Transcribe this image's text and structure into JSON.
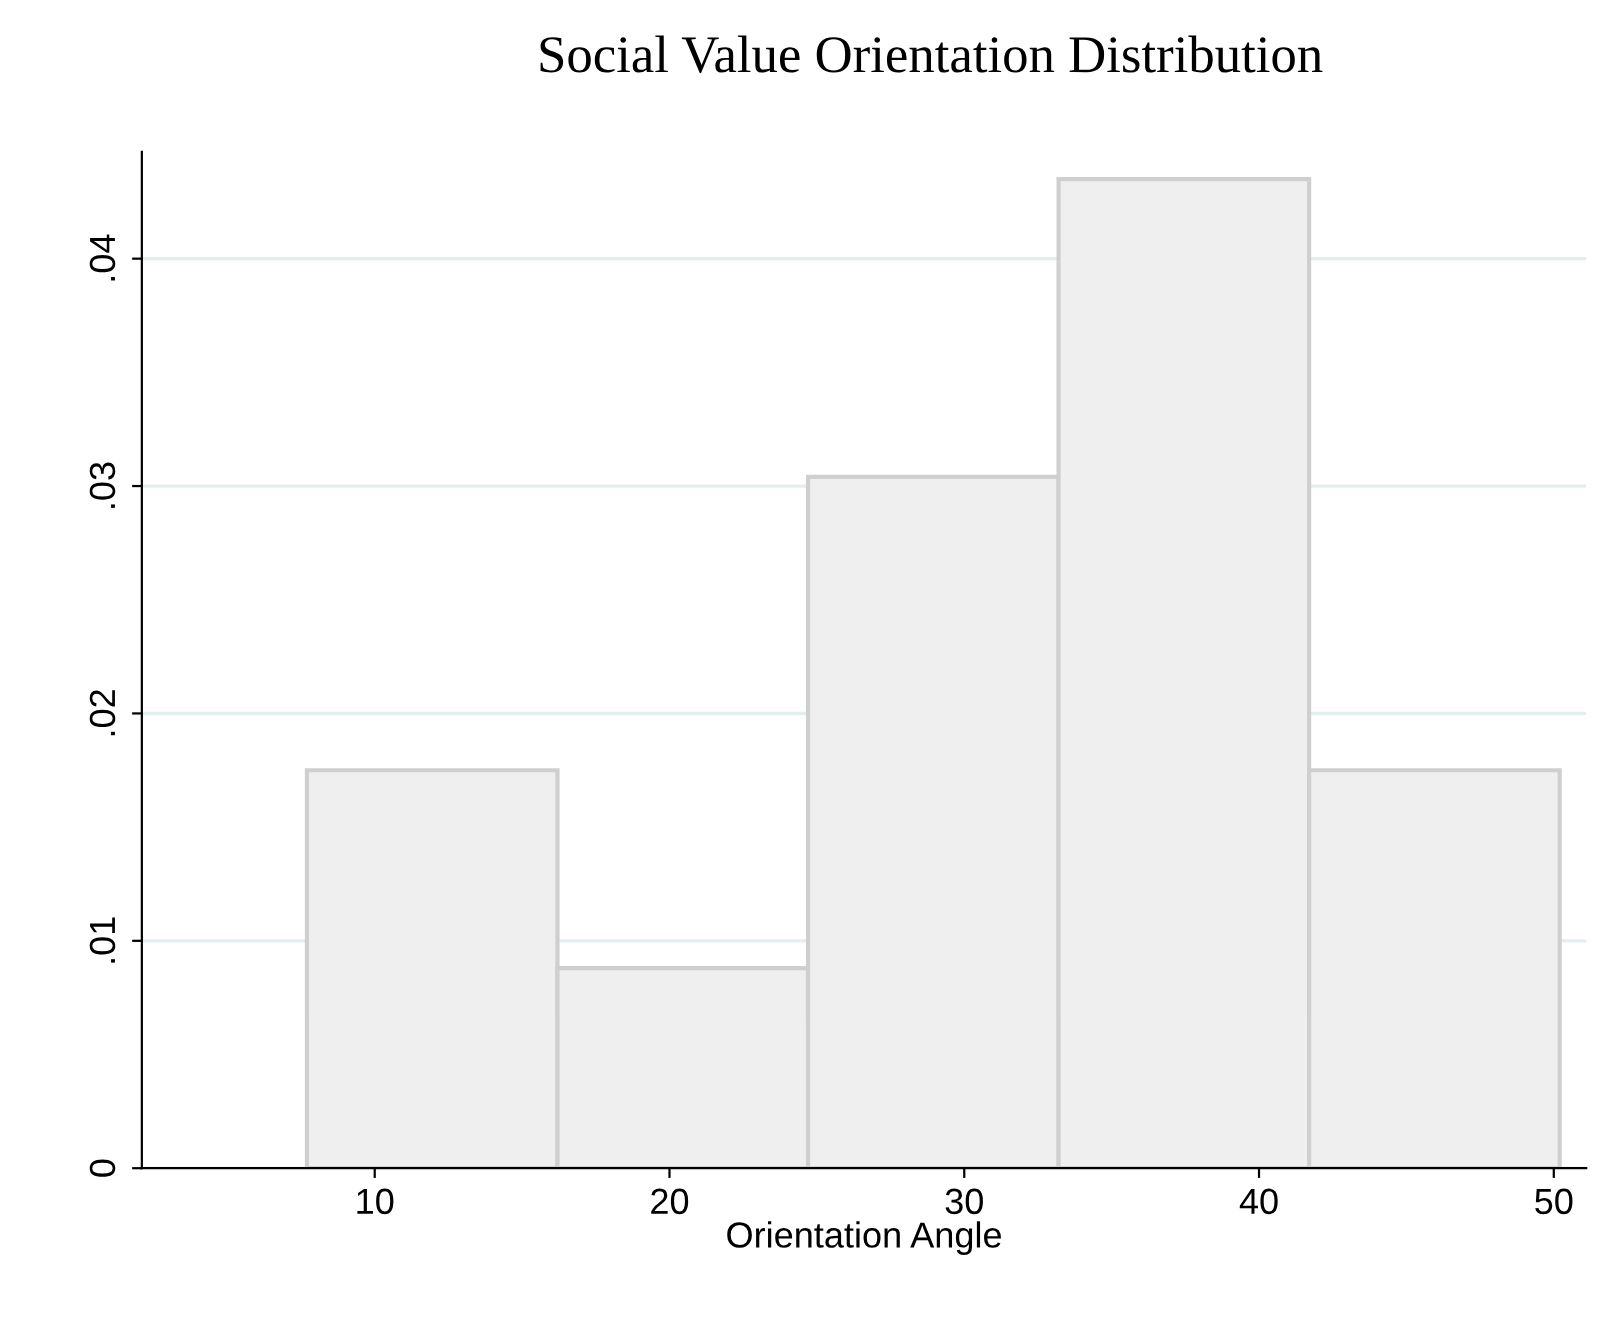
{
  "chart_data": {
    "type": "histogram",
    "title": "Social Value Orientation Distribution",
    "xlabel": "Orientation Angle",
    "bins": [
      7.7,
      16.2,
      24.7,
      33.2,
      41.7,
      50.2
    ],
    "values": [
      0.0175,
      0.0088,
      0.0304,
      0.0435,
      0.0175
    ],
    "color": "#efefef",
    "xlim": [
      2.1,
      51.1
    ],
    "xticks": [
      10,
      20,
      30,
      40,
      50
    ],
    "ylim": [
      0,
      0.0447
    ],
    "yticks": [
      {
        "value": 0,
        "label": "0"
      },
      {
        "value": 0.01,
        "label": ".01"
      },
      {
        "value": 0.02,
        "label": ".02"
      },
      {
        "value": 0.03,
        "label": ".03"
      },
      {
        "value": 0.04,
        "label": ".04"
      }
    ],
    "grid": "y"
  }
}
